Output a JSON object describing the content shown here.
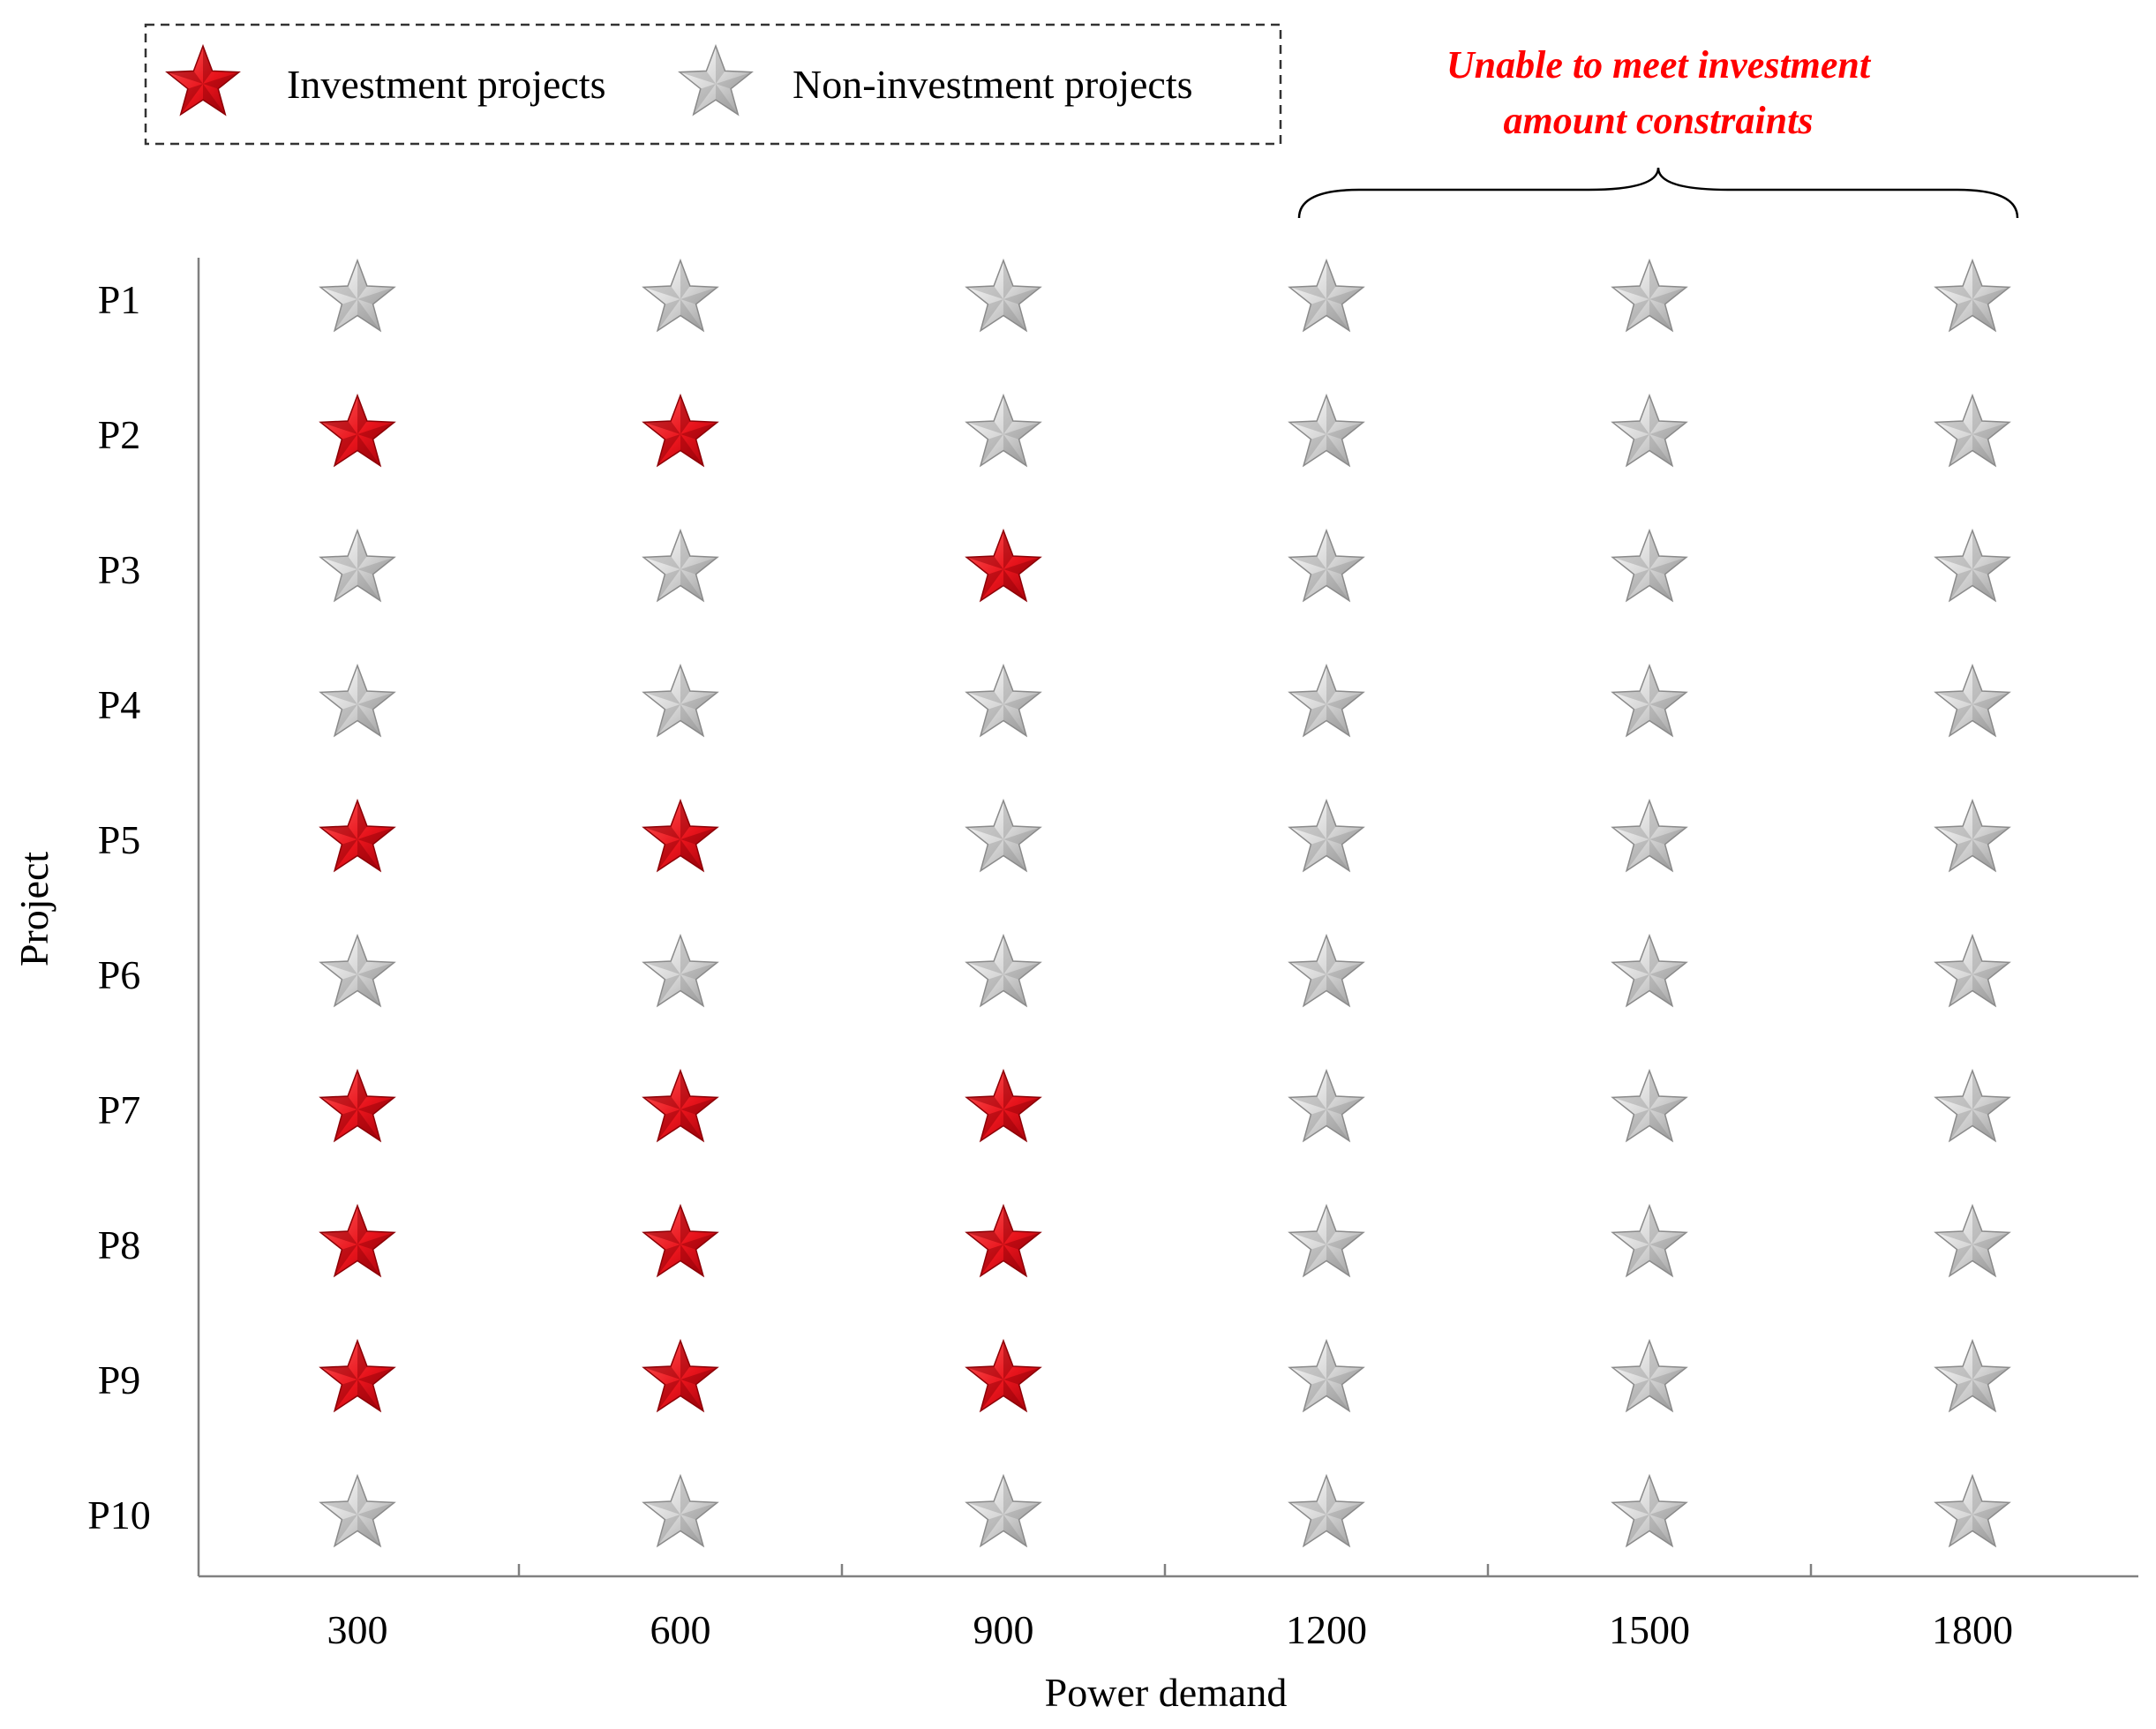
{
  "chart_data": {
    "type": "scatter",
    "title": "",
    "xlabel": "Power demand",
    "ylabel": "Project",
    "categories": [
      "300",
      "600",
      "900",
      "1200",
      "1500",
      "1800"
    ],
    "projects": [
      "P1",
      "P2",
      "P3",
      "P4",
      "P5",
      "P6",
      "P7",
      "P8",
      "P9",
      "P10"
    ],
    "legend": {
      "position": "top-left",
      "invest_label": "Investment projects",
      "non_invest_label": "Non-investment projects"
    },
    "annotation": {
      "line1": "Unable to meet investment",
      "line2": "amount constraints",
      "applies_to": [
        "1200",
        "1500",
        "1800"
      ]
    },
    "investment_matrix": [
      [
        0,
        0,
        0,
        0,
        0,
        0
      ],
      [
        1,
        1,
        0,
        0,
        0,
        0
      ],
      [
        0,
        0,
        1,
        0,
        0,
        0
      ],
      [
        0,
        0,
        0,
        0,
        0,
        0
      ],
      [
        1,
        1,
        0,
        0,
        0,
        0
      ],
      [
        0,
        0,
        0,
        0,
        0,
        0
      ],
      [
        1,
        1,
        1,
        0,
        0,
        0
      ],
      [
        1,
        1,
        1,
        0,
        0,
        0
      ],
      [
        1,
        1,
        1,
        0,
        0,
        0
      ],
      [
        0,
        0,
        0,
        0,
        0,
        0
      ]
    ],
    "colors": {
      "invest_fill": "#e8141c",
      "invest_dark": "#8c0006",
      "non_invest_fill": "#d7d7d7",
      "non_invest_dark": "#8a8a8a",
      "annotation": "#ff0000",
      "axis": "#808080"
    }
  }
}
